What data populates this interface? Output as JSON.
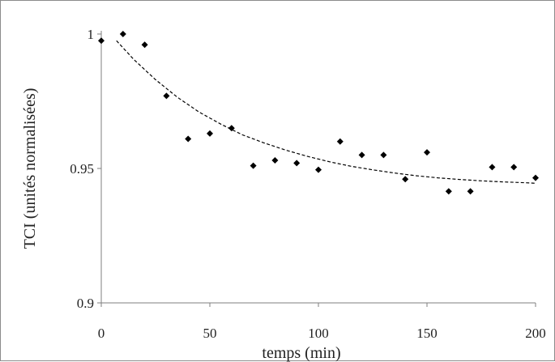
{
  "chart_data": {
    "type": "scatter",
    "xlabel": "temps (min)",
    "ylabel": "TCI (unités normalisées)",
    "xlim": [
      0,
      200
    ],
    "ylim": [
      0.9,
      1.0
    ],
    "x_ticks": [
      0,
      50,
      100,
      150,
      200
    ],
    "y_ticks": [
      0.9,
      0.95,
      1.0
    ],
    "x_tick_labels": [
      "0",
      "50",
      "100",
      "150",
      "200"
    ],
    "y_tick_labels": [
      "0.9",
      "0.95",
      "1"
    ],
    "grid": false,
    "legend": "none",
    "series": [
      {
        "kind": "points",
        "marker": "diamond",
        "color": "#000000",
        "x": [
          0,
          10,
          20,
          30,
          40,
          50,
          60,
          70,
          80,
          90,
          100,
          110,
          120,
          130,
          140,
          150,
          160,
          170,
          180,
          190,
          200
        ],
        "y": [
          0.9975,
          1.0,
          0.996,
          0.977,
          0.961,
          0.963,
          0.965,
          0.951,
          0.953,
          0.952,
          0.9495,
          0.96,
          0.955,
          0.955,
          0.946,
          0.956,
          0.9415,
          0.9415,
          0.9505,
          0.9505,
          0.9465
        ]
      },
      {
        "kind": "fit",
        "style": "dashed",
        "color": "#000000",
        "x": [
          7,
          15,
          25,
          35,
          45,
          55,
          65,
          75,
          85,
          95,
          105,
          115,
          125,
          135,
          145,
          155,
          165,
          175,
          185,
          195,
          200
        ],
        "y": [
          0.9975,
          0.9905,
          0.983,
          0.9765,
          0.971,
          0.9665,
          0.9625,
          0.9595,
          0.9568,
          0.9545,
          0.9525,
          0.9508,
          0.9495,
          0.9483,
          0.9473,
          0.9465,
          0.9459,
          0.9454,
          0.945,
          0.9447,
          0.9445
        ]
      }
    ]
  }
}
